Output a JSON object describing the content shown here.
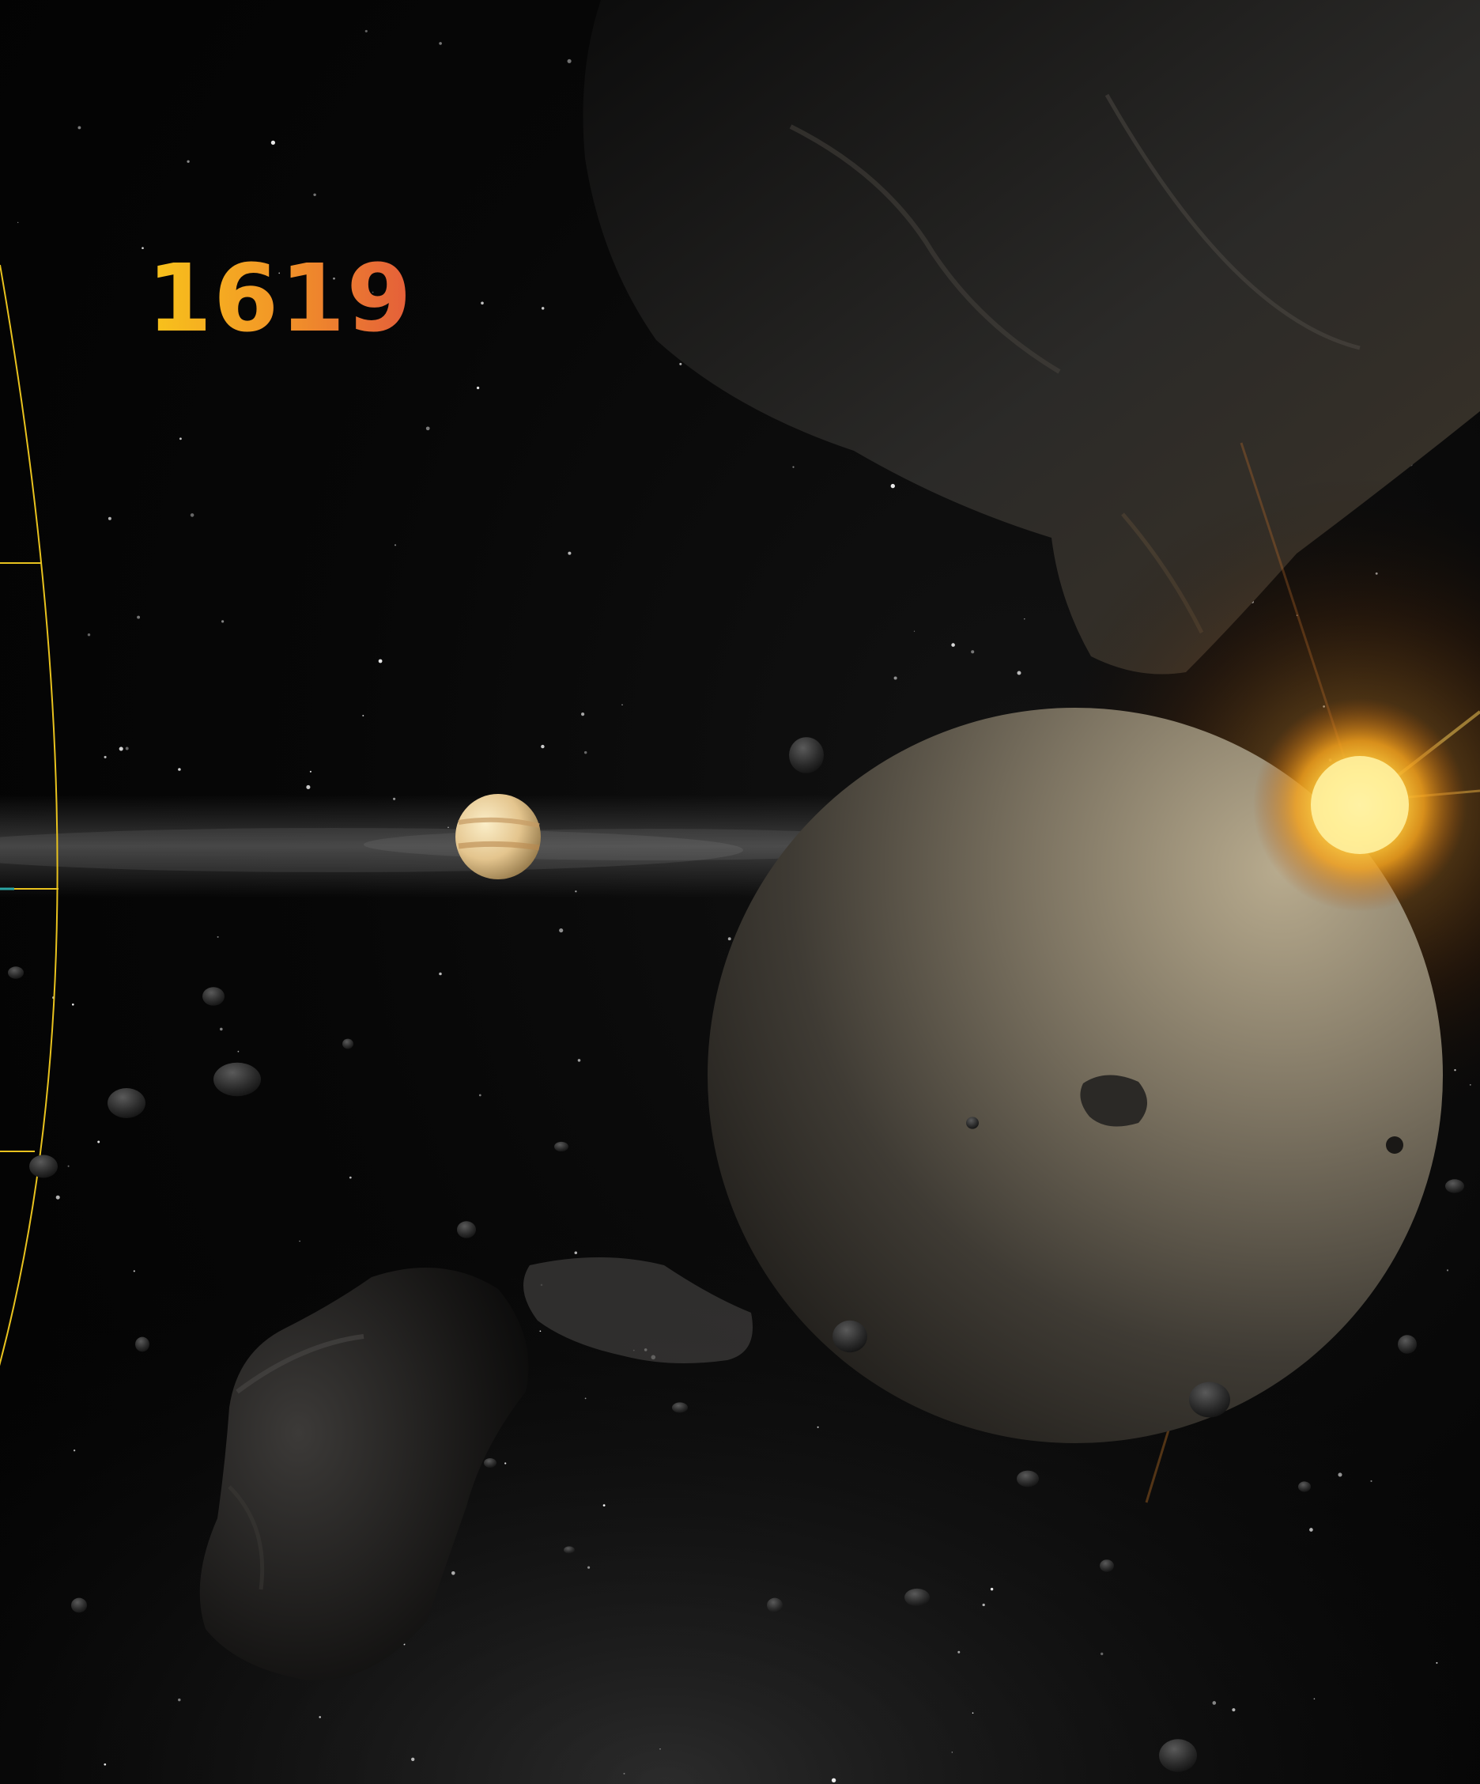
{
  "page": {
    "year_label": "1619"
  },
  "colors": {
    "background": "#050505",
    "timeline_line": "#e8c21e",
    "year_gradient_start": "#f8c41b",
    "year_gradient_end": "#e45d3a",
    "sun_glow": "#ffcf3a",
    "gas_giant": "#8a806e",
    "small_planet": "#e7cf9a",
    "marker_accent": "#2ca6a4"
  },
  "scene": {
    "objects": [
      "timeline-arc",
      "timeline-ticks",
      "star-field",
      "dust-band",
      "small-banded-planet",
      "gas-giant",
      "sun-flare",
      "asteroids"
    ]
  }
}
